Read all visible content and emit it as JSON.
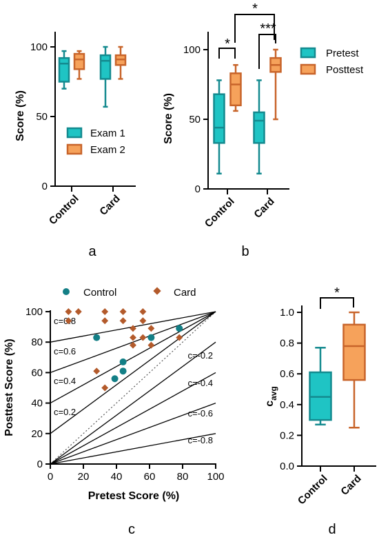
{
  "colors": {
    "teal_fill": "#1fc4c4",
    "teal_stroke": "#148a8f",
    "orange_fill": "#f6a25b",
    "orange_stroke": "#c8642a",
    "control_marker": "#137f86",
    "card_marker": "#b35a2b"
  },
  "panel_labels": [
    "a",
    "b",
    "c",
    "d"
  ],
  "chart_data": [
    {
      "panel": "a",
      "type": "box",
      "ylabel": "Score (%)",
      "ylim": [
        0,
        100
      ],
      "yticks": [
        0,
        50,
        100
      ],
      "categories": [
        "Control",
        "Card"
      ],
      "series": [
        {
          "name": "Exam 1",
          "boxes": [
            {
              "min": 70,
              "q1": 75,
              "median": 88,
              "q3": 92,
              "max": 97
            },
            {
              "min": 57,
              "q1": 77,
              "median": 90,
              "q3": 94,
              "max": 100
            }
          ]
        },
        {
          "name": "Exam 2",
          "boxes": [
            {
              "min": 77,
              "q1": 84,
              "median": 91,
              "q3": 95,
              "max": 97
            },
            {
              "min": 77,
              "q1": 87,
              "median": 91,
              "q3": 94,
              "max": 100
            }
          ]
        }
      ]
    },
    {
      "panel": "b",
      "type": "box",
      "ylabel": "Score (%)",
      "ylim": [
        0,
        100
      ],
      "yticks": [
        0,
        50,
        100
      ],
      "categories": [
        "Control",
        "Card"
      ],
      "series": [
        {
          "name": "Pretest",
          "boxes": [
            {
              "min": 11,
              "q1": 33,
              "median": 44,
              "q3": 68,
              "max": 78
            },
            {
              "min": 11,
              "q1": 33,
              "median": 49,
              "q3": 55,
              "max": 78
            }
          ]
        },
        {
          "name": "Posttest",
          "boxes": [
            {
              "min": 56,
              "q1": 60,
              "median": 75,
              "q3": 83,
              "max": 89
            },
            {
              "min": 50,
              "q1": 84,
              "median": 89,
              "q3": 94,
              "max": 100
            }
          ]
        }
      ],
      "significance": [
        "*",
        "*",
        "***"
      ]
    },
    {
      "panel": "c",
      "type": "scatter",
      "xlabel": "Pretest Score (%)",
      "ylabel": "Posttest Score (%)",
      "xlim": [
        0,
        100
      ],
      "ylim": [
        0,
        100
      ],
      "xticks": [
        0,
        20,
        40,
        60,
        80,
        100
      ],
      "yticks": [
        0,
        20,
        40,
        60,
        80,
        100
      ],
      "series": [
        {
          "name": "Control",
          "points": [
            [
              28,
              83
            ],
            [
              39,
              56
            ],
            [
              44,
              61
            ],
            [
              44,
              67
            ],
            [
              61,
              83
            ],
            [
              78,
              89
            ]
          ]
        },
        {
          "name": "Card",
          "points": [
            [
              11,
              100
            ],
            [
              17,
              100
            ],
            [
              11,
              94
            ],
            [
              33,
              100
            ],
            [
              44,
              100
            ],
            [
              33,
              94
            ],
            [
              44,
              94
            ],
            [
              56,
              100
            ],
            [
              56,
              94
            ],
            [
              50,
              89
            ],
            [
              61,
              89
            ],
            [
              50,
              83
            ],
            [
              56,
              83
            ],
            [
              50,
              78
            ],
            [
              61,
              78
            ],
            [
              28,
              61
            ],
            [
              33,
              50
            ],
            [
              78,
              83
            ]
          ]
        }
      ],
      "c_lines": [
        {
          "c": 0.8,
          "label": "c=0.8"
        },
        {
          "c": 0.6,
          "label": "c=0.6"
        },
        {
          "c": 0.4,
          "label": "c=0.4"
        },
        {
          "c": 0.2,
          "label": "c=0.2"
        },
        {
          "c": -0.2,
          "label": "c=-0.2"
        },
        {
          "c": -0.4,
          "label": "c=-0.4"
        },
        {
          "c": -0.6,
          "label": "c=-0.6"
        },
        {
          "c": -0.8,
          "label": "c=-0.8"
        }
      ]
    },
    {
      "panel": "d",
      "type": "box",
      "ylabel": "c_avg",
      "ylabel_main": "c",
      "ylabel_sub": "avg",
      "ylim": [
        0,
        1.0
      ],
      "yticks": [
        "0.0",
        "0.2",
        "0.4",
        "0.6",
        "0.8",
        "1.0"
      ],
      "categories": [
        "Control",
        "Card"
      ],
      "boxes": [
        {
          "min": 0.27,
          "q1": 0.3,
          "median": 0.45,
          "q3": 0.61,
          "max": 0.77
        },
        {
          "min": 0.25,
          "q1": 0.56,
          "median": 0.78,
          "q3": 0.92,
          "max": 1.0
        }
      ],
      "significance": [
        "*"
      ]
    }
  ]
}
